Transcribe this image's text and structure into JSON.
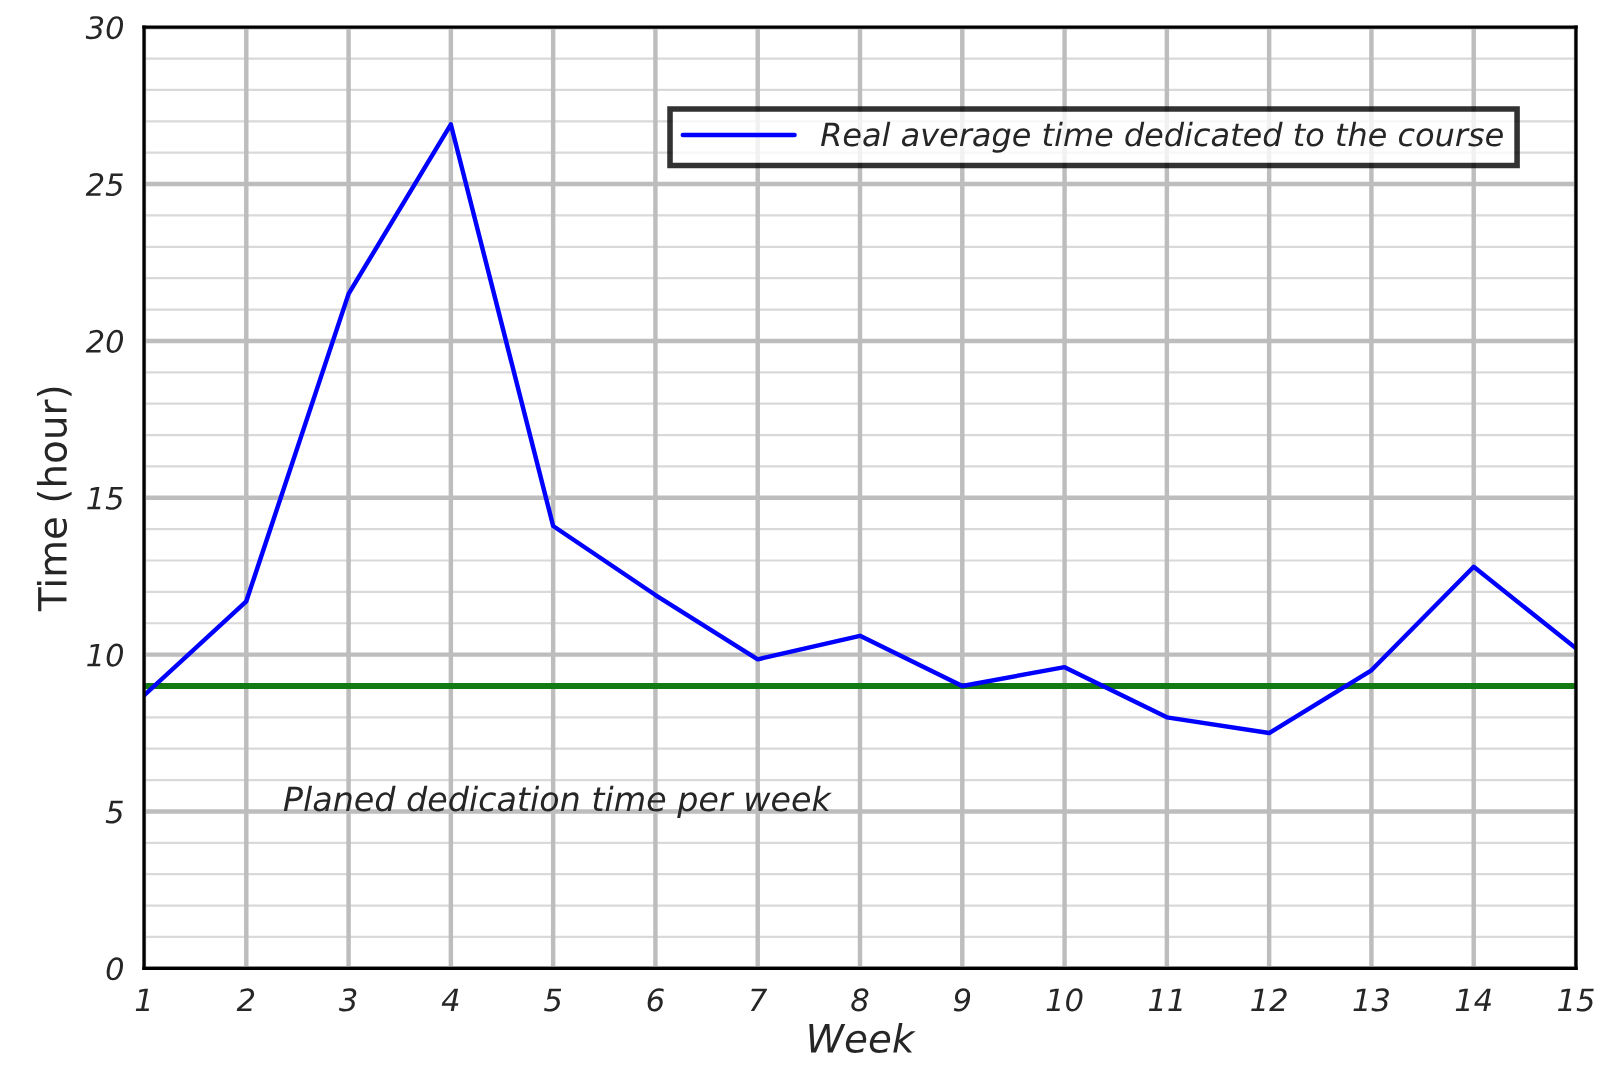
{
  "chart_data": {
    "type": "line",
    "xlabel": "Week",
    "ylabel": "Time (hour)",
    "x": [
      1,
      2,
      3,
      4,
      5,
      6,
      7,
      8,
      9,
      10,
      11,
      12,
      13,
      14,
      15
    ],
    "series": [
      {
        "name": "Real average time dedicated to the course",
        "color": "#0000ff",
        "values": [
          8.7,
          11.7,
          21.5,
          26.9,
          14.1,
          11.9,
          9.85,
          10.6,
          9.0,
          9.6,
          8.0,
          7.5,
          9.5,
          12.8,
          10.2
        ]
      }
    ],
    "ref_lines": [
      {
        "axis": "y",
        "value": 9,
        "label": "Planed dedication time per week",
        "color": "#137a13",
        "line_style": "solid"
      }
    ],
    "xlim": [
      1,
      15
    ],
    "xticks": [
      1,
      2,
      3,
      4,
      5,
      6,
      7,
      8,
      9,
      10,
      11,
      12,
      13,
      14,
      15
    ],
    "ylim": [
      0,
      30
    ],
    "yticks": [
      0,
      5,
      10,
      15,
      20,
      25,
      30
    ],
    "grid": true,
    "legend": "top right",
    "marker": "none",
    "line_style": "solid"
  }
}
